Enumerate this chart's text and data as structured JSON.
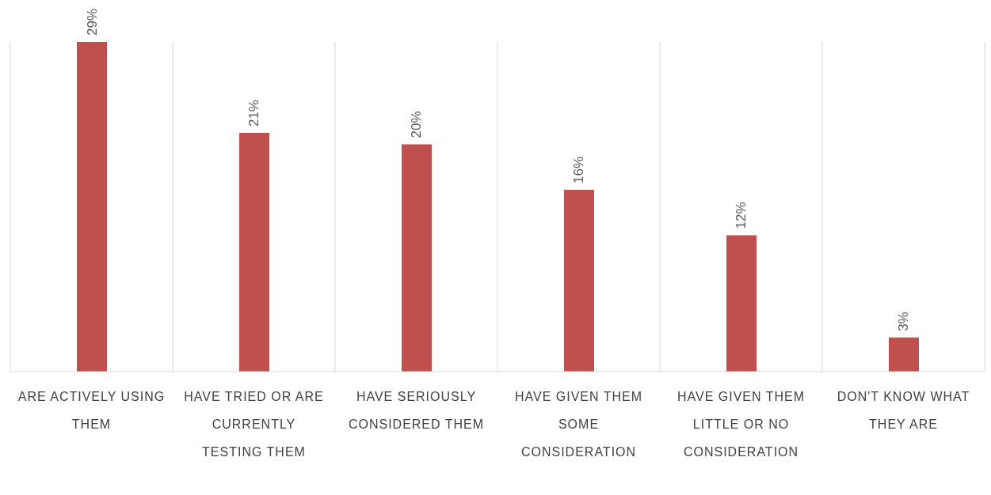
{
  "chart_data": {
    "type": "bar",
    "categories": [
      "ARE ACTIVELY USING THEM",
      "HAVE TRIED OR ARE CURRENTLY TESTING THEM",
      "HAVE SERIOUSLY CONSIDERED THEM",
      "HAVE GIVEN THEM SOME CONSIDERATION",
      "HAVE GIVEN THEM LITTLE OR NO CONSIDERATION",
      "DON'T KNOW WHAT THEY ARE"
    ],
    "values": [
      29,
      21,
      20,
      16,
      12,
      3
    ],
    "value_labels": [
      "29%",
      "21%",
      "20%",
      "16%",
      "12%",
      "3%"
    ],
    "color": "#c0504d",
    "grid": "x",
    "tick_labels": "x"
  }
}
